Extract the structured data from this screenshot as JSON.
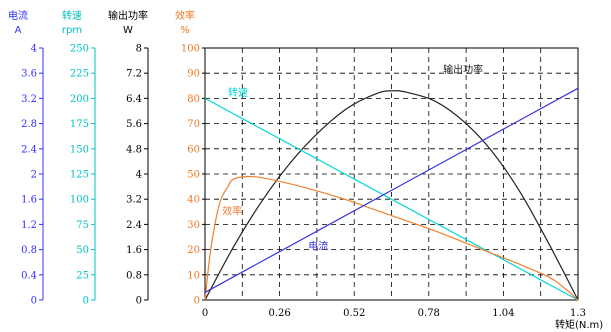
{
  "chart_data": {
    "type": "line",
    "xlabel": "转矩(N.m)",
    "x_ticks": [
      "0",
      "0.26",
      "0.52",
      "0.78",
      "1.04",
      "1.3"
    ],
    "xlim": [
      0,
      1.3
    ],
    "y_main": {
      "ticks": [
        0,
        10,
        20,
        30,
        40,
        50,
        60,
        70,
        80,
        90,
        100
      ],
      "ylim": [
        0,
        100
      ]
    },
    "axes": [
      {
        "title": "电流",
        "unit": "A",
        "color": "#3030ff",
        "ticks": [
          "0",
          "0.4",
          "0.8",
          "1.2",
          "1.6",
          "2",
          "2.4",
          "2.8",
          "3.2",
          "3.6",
          "4"
        ]
      },
      {
        "title": "转速",
        "unit": "rpm",
        "color": "#00c0c0",
        "ticks": [
          "0",
          "25",
          "50",
          "75",
          "100",
          "125",
          "150",
          "175",
          "200",
          "225",
          "250"
        ]
      },
      {
        "title": "输出功率",
        "unit": "W",
        "color": "#000000",
        "ticks": [
          "0",
          "0.8",
          "1.6",
          "2.4",
          "3.2",
          "4",
          "4.8",
          "5.6",
          "6.4",
          "7.2",
          "8"
        ]
      },
      {
        "title": "效率",
        "unit": "%",
        "color": "#f07820",
        "ticks": [
          "0",
          "10",
          "20",
          "30",
          "40",
          "50",
          "60",
          "70",
          "80",
          "90",
          "100"
        ]
      }
    ],
    "grid": true,
    "series": [
      {
        "name": "输出功率",
        "color": "#222222",
        "x": [
          0,
          0.1,
          0.2,
          0.3,
          0.4,
          0.5,
          0.6,
          0.65,
          0.7,
          0.8,
          0.9,
          1.0,
          1.1,
          1.2,
          1.3
        ],
        "y": [
          0,
          21.2,
          39.5,
          54.8,
          67.0,
          76.4,
          82.0,
          83.0,
          82.5,
          79.0,
          71.0,
          59.0,
          42.5,
          22.0,
          0
        ]
      },
      {
        "name": "转速",
        "color": "#00d8d8",
        "x": [
          0,
          1.3
        ],
        "y": [
          80,
          0
        ]
      },
      {
        "name": "效率",
        "color": "#f08030",
        "x": [
          0,
          0.02,
          0.05,
          0.08,
          0.1,
          0.15,
          0.2,
          0.3,
          0.4,
          0.5,
          0.6,
          0.7,
          0.8,
          0.9,
          1.0,
          1.1,
          1.2,
          1.25,
          1.3
        ],
        "y": [
          0,
          20,
          38,
          45,
          48,
          49,
          48.5,
          46,
          43,
          39.5,
          35.5,
          31.5,
          27.5,
          23,
          18.5,
          14,
          9,
          5,
          0
        ]
      },
      {
        "name": "电流",
        "color": "#3333dd",
        "x": [
          0,
          1.3
        ],
        "y": [
          3,
          84
        ]
      }
    ],
    "labels": [
      {
        "series": "输出功率",
        "text": "输出功率",
        "x": 0.83,
        "y": 90
      },
      {
        "series": "转速",
        "text": "转速",
        "x": 0.08,
        "y": 81
      },
      {
        "series": "效率",
        "text": "效率",
        "x": 0.06,
        "y": 34
      },
      {
        "series": "电流",
        "text": "电流",
        "x": 0.36,
        "y": 20
      }
    ]
  }
}
